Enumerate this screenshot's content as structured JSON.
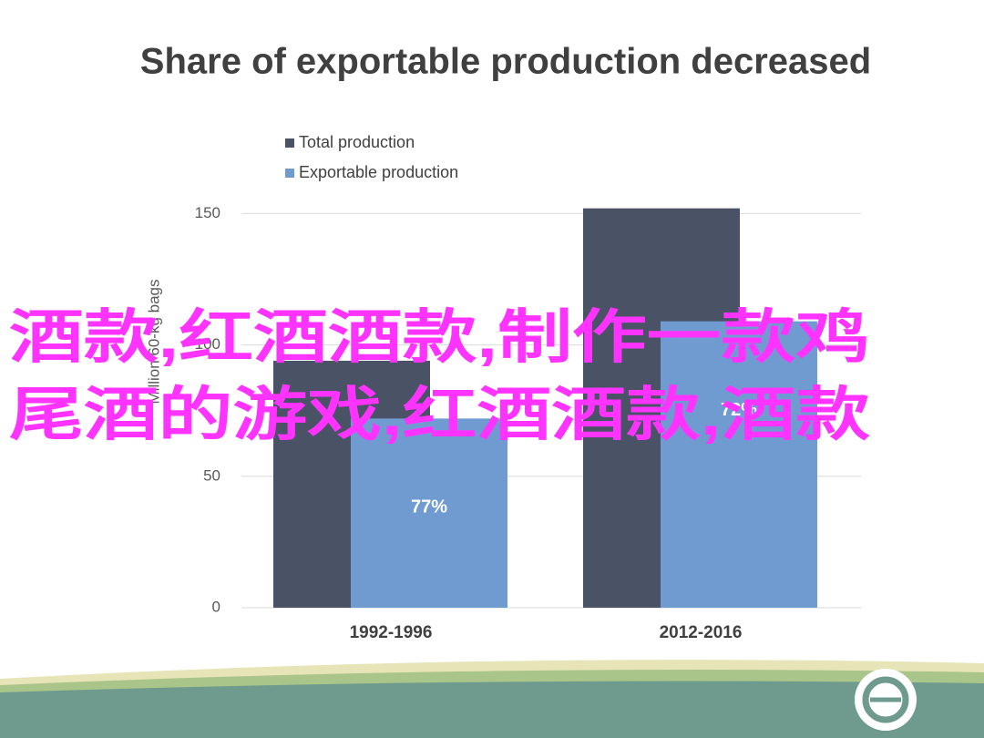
{
  "chart_data": {
    "type": "bar",
    "title": "Share of exportable production decreased",
    "y_label": "Million 60-kg bags",
    "categories": [
      "1992-1996",
      "2012-2016"
    ],
    "series": [
      {
        "name": "Total production",
        "color": "#4a5365",
        "values": [
          94,
          152
        ]
      },
      {
        "name": "Exportable production",
        "color": "#6f9bd1",
        "values": [
          72,
          109
        ]
      }
    ],
    "share_labels": [
      "77%",
      "72%"
    ],
    "ylim": [
      0,
      155
    ],
    "yticks": [
      0,
      50,
      100,
      150
    ],
    "grid": true,
    "legend": "top"
  },
  "overlay_text": [
    "酒款,红酒酒款,制作一款鸡",
    "尾酒的游戏,红酒酒款,酒款"
  ]
}
